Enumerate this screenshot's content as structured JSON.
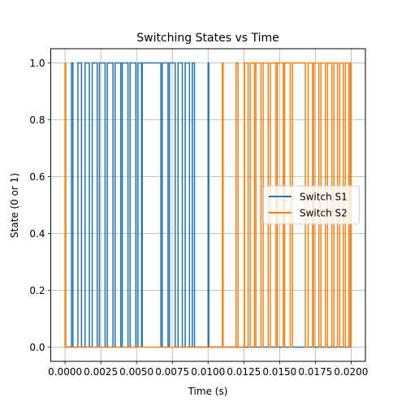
{
  "chart_data": {
    "type": "line",
    "title": "Switching States vs Time",
    "xlabel": "Time (s)",
    "ylabel": "State (0 or 1)",
    "xlim": [
      -0.001,
      0.021
    ],
    "ylim": [
      -0.05,
      1.05
    ],
    "grid": true,
    "legend_position": "center-right",
    "x_ticks": [
      0.0,
      0.0025,
      0.005,
      0.0075,
      0.01,
      0.0125,
      0.015,
      0.0175,
      0.02
    ],
    "x_tick_labels": [
      "0.0000",
      "0.0025",
      "0.0050",
      "0.0075",
      "0.0100",
      "0.0125",
      "0.0150",
      "0.0175",
      "0.0200"
    ],
    "y_ticks": [
      0.0,
      0.2,
      0.4,
      0.6,
      0.8,
      1.0
    ],
    "y_tick_labels": [
      "0.0",
      "0.2",
      "0.4",
      "0.6",
      "0.8",
      "1.0"
    ],
    "series": [
      {
        "name": "Switch S1",
        "color": "#1f77b4",
        "on_intervals": [
          [
            0.00045,
            0.00055
          ],
          [
            0.0009,
            0.00115
          ],
          [
            0.0014,
            0.0017
          ],
          [
            0.0019,
            0.00225
          ],
          [
            0.0024,
            0.0028
          ],
          [
            0.00295,
            0.00335
          ],
          [
            0.0035,
            0.0039
          ],
          [
            0.004,
            0.0044
          ],
          [
            0.00455,
            0.00495
          ],
          [
            0.0051,
            0.00535
          ],
          [
            0.00535,
            0.0054
          ],
          [
            0.0054,
            0.0067
          ],
          [
            0.0068,
            0.0072
          ],
          [
            0.0073,
            0.0077
          ],
          [
            0.0079,
            0.0082
          ],
          [
            0.0084,
            0.0087
          ],
          [
            0.0089,
            0.00905
          ],
          [
            0.01,
            0.01005
          ]
        ]
      },
      {
        "name": "Switch S2",
        "color": "#ff7f0e",
        "on_intervals": [
          [
            0.0,
            5e-05
          ],
          [
            0.011,
            0.01105
          ],
          [
            0.01195,
            0.0121
          ],
          [
            0.01255,
            0.0128
          ],
          [
            0.01295,
            0.01325
          ],
          [
            0.01335,
            0.0137
          ],
          [
            0.01385,
            0.0142
          ],
          [
            0.01435,
            0.01475
          ],
          [
            0.01485,
            0.01525
          ],
          [
            0.01535,
            0.01575
          ],
          [
            0.0159,
            0.0168
          ],
          [
            0.017,
            0.0173
          ],
          [
            0.0174,
            0.01775
          ],
          [
            0.0179,
            0.0182
          ],
          [
            0.01835,
            0.01865
          ],
          [
            0.0188,
            0.01905
          ],
          [
            0.0192,
            0.01945
          ],
          [
            0.0196,
            0.01985
          ],
          [
            0.01995,
            0.02
          ]
        ]
      }
    ]
  }
}
